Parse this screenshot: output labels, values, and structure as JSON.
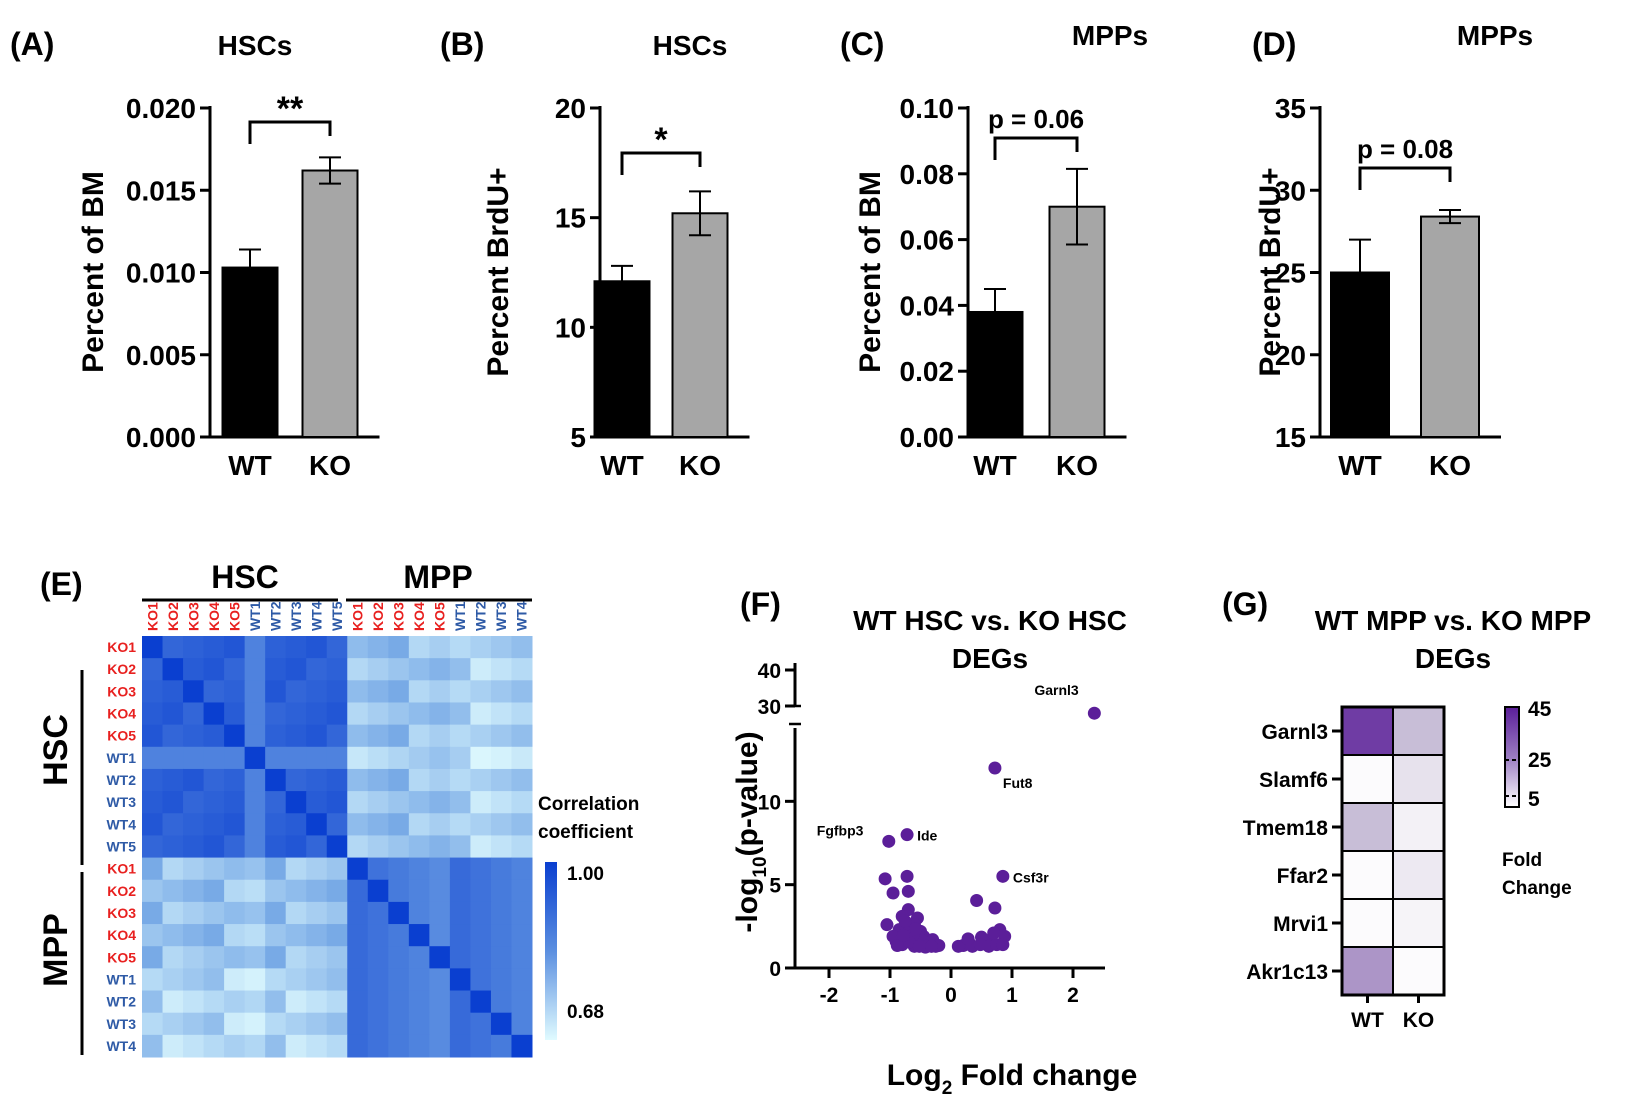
{
  "colors": {
    "wt_bar": "#000000",
    "ko_bar": "#a6a6a6",
    "ko_label": "#e8201f",
    "wt_label": "#2e5aa6",
    "volcano": "#5b1e99",
    "fold_high": "#5b1e99"
  },
  "chart_data": [
    {
      "id": "A",
      "type": "bar",
      "panel_label": "(A)",
      "title": "HSCs",
      "ylabel": "Percent of BM",
      "ylim": [
        0,
        0.02
      ],
      "yticks": [
        "0.000",
        "0.005",
        "0.010",
        "0.015",
        "0.020"
      ],
      "categories": [
        "WT",
        "KO"
      ],
      "values": [
        0.0103,
        0.0162
      ],
      "errors": [
        0.0011,
        0.0008
      ],
      "significance": "**"
    },
    {
      "id": "B",
      "type": "bar",
      "panel_label": "(B)",
      "title": "HSCs",
      "ylabel": "Percent BrdU+",
      "ylim": [
        5,
        20
      ],
      "yticks": [
        "5",
        "10",
        "15",
        "20"
      ],
      "categories": [
        "WT",
        "KO"
      ],
      "values": [
        12.1,
        15.2
      ],
      "errors": [
        0.7,
        1.0
      ],
      "significance": "*"
    },
    {
      "id": "C",
      "type": "bar",
      "panel_label": "(C)",
      "title": "MPPs",
      "ylabel": "Percent of BM",
      "ylim": [
        0,
        0.1
      ],
      "yticks": [
        "0.00",
        "0.02",
        "0.04",
        "0.06",
        "0.08",
        "0.10"
      ],
      "categories": [
        "WT",
        "KO"
      ],
      "values": [
        0.038,
        0.07
      ],
      "errors": [
        0.007,
        0.0115
      ],
      "significance": "p = 0.06"
    },
    {
      "id": "D",
      "type": "bar",
      "panel_label": "(D)",
      "title": "MPPs",
      "ylabel": "Percent BrdU+",
      "ylim": [
        15,
        35
      ],
      "yticks": [
        "15",
        "20",
        "25",
        "30",
        "35"
      ],
      "categories": [
        "WT",
        "KO"
      ],
      "values": [
        25,
        28.4
      ],
      "errors": [
        2.0,
        0.4
      ],
      "significance": "p = 0.08"
    },
    {
      "id": "E",
      "type": "heatmap",
      "panel_label": "(E)",
      "column_groups": [
        "HSC",
        "MPP"
      ],
      "row_groups": [
        "HSC",
        "MPP"
      ],
      "column_labels": [
        "KO1",
        "KO2",
        "KO3",
        "KO4",
        "KO5",
        "WT1",
        "WT2",
        "WT3",
        "WT4",
        "WT5",
        "KO1",
        "KO2",
        "KO3",
        "KO4",
        "KO5",
        "WT1",
        "WT2",
        "WT3",
        "WT4"
      ],
      "row_labels": [
        "KO1",
        "KO2",
        "KO3",
        "KO4",
        "KO5",
        "WT1",
        "WT2",
        "WT3",
        "WT4",
        "WT5",
        "KO1",
        "KO2",
        "KO3",
        "KO4",
        "KO5",
        "WT1",
        "WT2",
        "WT3",
        "WT4"
      ],
      "colorbar_title_1": "Correlation",
      "colorbar_title_2": "coefficient",
      "colorbar_max": "1.00",
      "colorbar_min": "0.68",
      "range": [
        0.68,
        1.0
      ]
    },
    {
      "id": "F",
      "type": "scatter",
      "panel_label": "(F)",
      "title_line1": "WT HSC vs. KO HSC",
      "title_line2": "DEGs",
      "xlabel": "Log",
      "xlabel_sub": "2",
      "xlabel_rest": " Fold change",
      "ylabel": "-log",
      "ylabel_sub": "10",
      "ylabel_rest": "(p-value)",
      "xticks": [
        "-2",
        "-1",
        "0",
        "1",
        "2"
      ],
      "yticks_lower": [
        "0",
        "5",
        "10"
      ],
      "yticks_upper": [
        "30",
        "40"
      ],
      "labeled_points": [
        {
          "gene": "Garnl3",
          "x": 2.35,
          "y": 28
        },
        {
          "gene": "Fut8",
          "x": 0.72,
          "y": 12
        },
        {
          "gene": "Fgfbp3",
          "x": -1.02,
          "y": 7.6
        },
        {
          "gene": "Ide",
          "x": -0.72,
          "y": 8.0
        },
        {
          "gene": "Csf3r",
          "x": 0.85,
          "y": 5.5
        }
      ],
      "points": [
        [
          -1.08,
          5.35
        ],
        [
          -0.72,
          5.5
        ],
        [
          -0.95,
          4.5
        ],
        [
          -0.7,
          4.6
        ],
        [
          -0.7,
          3.5
        ],
        [
          -0.55,
          3.0
        ],
        [
          -1.05,
          2.6
        ],
        [
          -0.8,
          3.1
        ],
        [
          -0.85,
          2.3
        ],
        [
          -0.6,
          2.6
        ],
        [
          -0.5,
          2.2
        ],
        [
          -0.45,
          1.9
        ],
        [
          -0.3,
          1.7
        ],
        [
          -0.65,
          1.8
        ],
        [
          -0.9,
          1.6
        ],
        [
          -0.4,
          1.4
        ],
        [
          -0.25,
          1.3
        ],
        [
          -0.8,
          1.4
        ],
        [
          -0.55,
          1.45
        ],
        [
          -0.7,
          2.1
        ],
        [
          -0.95,
          1.9
        ],
        [
          -0.35,
          1.5
        ],
        [
          -0.6,
          1.3
        ],
        [
          -0.48,
          1.65
        ],
        [
          -0.75,
          2.8
        ],
        [
          -0.62,
          2.0
        ],
        [
          -0.2,
          1.35
        ],
        [
          -0.88,
          1.35
        ],
        [
          -0.42,
          1.25
        ],
        [
          -0.68,
          1.55
        ],
        [
          -0.52,
          1.3
        ],
        [
          -0.78,
          1.95
        ],
        [
          -0.32,
          1.3
        ],
        [
          -0.58,
          2.35
        ],
        [
          0.42,
          4.05
        ],
        [
          0.72,
          3.6
        ],
        [
          0.8,
          2.3
        ],
        [
          0.88,
          1.9
        ],
        [
          0.65,
          1.7
        ],
        [
          0.55,
          1.5
        ],
        [
          0.3,
          1.5
        ],
        [
          0.2,
          1.35
        ],
        [
          0.5,
          1.85
        ],
        [
          0.62,
          1.3
        ],
        [
          0.35,
          1.3
        ],
        [
          0.48,
          1.4
        ],
        [
          0.75,
          1.4
        ],
        [
          0.85,
          1.4
        ],
        [
          0.12,
          1.3
        ],
        [
          0.28,
          1.75
        ],
        [
          0.7,
          2.1
        ]
      ]
    },
    {
      "id": "G",
      "type": "heatmap",
      "panel_label": "(G)",
      "title_line1": "WT MPP vs. KO MPP",
      "title_line2": "DEGs",
      "genes": [
        "Garnl3",
        "Slamf6",
        "Tmem18",
        "Ffar2",
        "Mrvi1",
        "Akr1c13"
      ],
      "columns": [
        "WT",
        "KO"
      ],
      "values": [
        [
          40,
          18
        ],
        [
          1,
          8
        ],
        [
          18,
          4
        ],
        [
          1,
          6
        ],
        [
          1,
          3
        ],
        [
          25,
          1
        ]
      ],
      "colorbar_ticks": [
        "45",
        "25",
        "5"
      ],
      "colorbar_title_1": "Fold",
      "colorbar_title_2": "Change",
      "range": [
        0,
        45
      ]
    }
  ]
}
